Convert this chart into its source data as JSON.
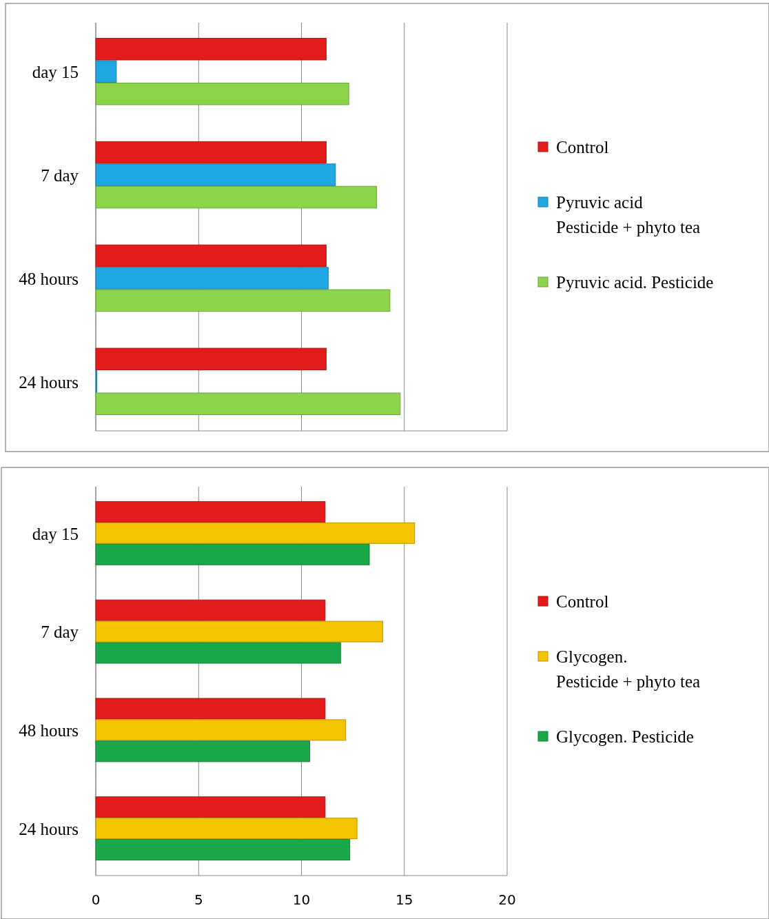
{
  "chart_data": [
    {
      "type": "bar",
      "orientation": "horizontal",
      "categories": [
        "day 15",
        "7 day",
        "48 hours",
        "24 hours"
      ],
      "xlim": [
        0,
        20
      ],
      "xticks": [
        0,
        5,
        10,
        15,
        20
      ],
      "grid": "x",
      "legend": "right",
      "tick_labels": "y",
      "series": [
        {
          "name": "Control",
          "color": "#e31b1b",
          "values": [
            11.2,
            11.2,
            11.2,
            11.2
          ]
        },
        {
          "name": "Pyruvic acid\nPesticide + phyto tea",
          "color": "#1ea7e0",
          "values": [
            1.0,
            11.65,
            11.3,
            0.05
          ]
        },
        {
          "name": "Pyruvic acid. Pesticide",
          "color": "#8cd44a",
          "values": [
            12.3,
            13.65,
            14.3,
            14.8
          ]
        }
      ]
    },
    {
      "type": "bar",
      "orientation": "horizontal",
      "categories": [
        "day 15",
        "7 day",
        "48 hours",
        "24 hours"
      ],
      "xlim": [
        0,
        20
      ],
      "xticks": [
        0,
        5,
        10,
        15,
        20
      ],
      "grid": "x",
      "legend": "right",
      "series": [
        {
          "name": "Control",
          "color": "#e31b1b",
          "values": [
            11.15,
            11.15,
            11.15,
            11.15
          ]
        },
        {
          "name": "Glycogen.\nPesticide + phyto tea",
          "color": "#f5c400",
          "values": [
            15.5,
            13.95,
            12.15,
            12.7
          ]
        },
        {
          "name": "Glycogen. Pesticide",
          "color": "#1aa84a",
          "values": [
            13.3,
            11.9,
            10.4,
            12.35
          ]
        }
      ]
    }
  ]
}
